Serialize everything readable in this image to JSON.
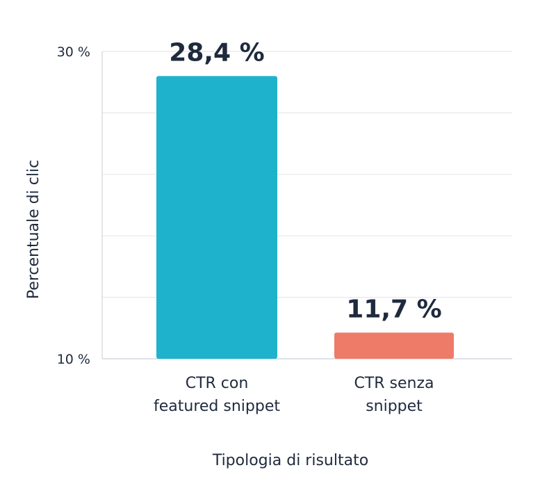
{
  "chart_data": {
    "type": "bar",
    "categories": [
      [
        "CTR con",
        "featured snippet"
      ],
      [
        "CTR senza",
        "snippet"
      ]
    ],
    "series": [
      {
        "values": [
          28.4,
          11.7
        ],
        "value_labels": [
          "28,4 %",
          "11,7 %"
        ],
        "colors": [
          "#1fb2cc",
          "#ee7b67"
        ]
      }
    ],
    "xlabel": "Tipologia di risultato",
    "ylabel": "Percentuale di clic",
    "ylim": [
      10,
      30
    ],
    "y_ticks": [
      10,
      30
    ],
    "y_tick_labels": [
      "10 %",
      "30 %"
    ],
    "grid": true
  },
  "colors": {
    "text": "#1f2a3d",
    "grid": "#e6e8eb",
    "axis": "#d0d4d9"
  }
}
